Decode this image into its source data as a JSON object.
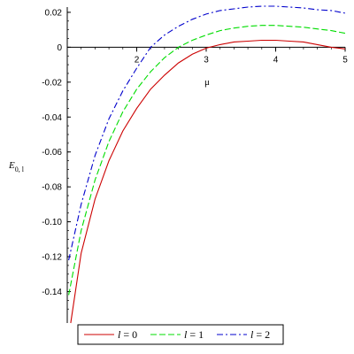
{
  "chart_data": {
    "type": "line",
    "xlabel": "μ",
    "ylabel": "E",
    "ylabel_sub": "0, l",
    "xlim": [
      1.0,
      5.0
    ],
    "ylim": [
      -0.158,
      0.023
    ],
    "x_ticks": [
      2,
      3,
      4,
      5
    ],
    "y_ticks": [
      0.02,
      0,
      -0.02,
      -0.04,
      -0.06,
      -0.08,
      -0.1,
      -0.12,
      -0.14
    ],
    "y_tick_labels": [
      "0.02",
      "0",
      "-0.02",
      "-0.04",
      "-0.06",
      "-0.08",
      "-0.10",
      "-0.12",
      "-0.14"
    ],
    "legend_position": "bottom",
    "series": [
      {
        "name": "l = 0",
        "legend_var": "l",
        "legend_value": "0",
        "color": "#cc0000",
        "dash": "solid",
        "points": [
          [
            1.05,
            -0.158
          ],
          [
            1.2,
            -0.118
          ],
          [
            1.4,
            -0.087
          ],
          [
            1.6,
            -0.065
          ],
          [
            1.8,
            -0.048
          ],
          [
            2.0,
            -0.035
          ],
          [
            2.2,
            -0.024
          ],
          [
            2.4,
            -0.016
          ],
          [
            2.6,
            -0.009
          ],
          [
            2.8,
            -0.004
          ],
          [
            3.0,
            -0.0005
          ],
          [
            3.2,
            0.0015
          ],
          [
            3.4,
            0.003
          ],
          [
            3.6,
            0.0035
          ],
          [
            3.8,
            0.004
          ],
          [
            4.0,
            0.004
          ],
          [
            4.2,
            0.0035
          ],
          [
            4.4,
            0.003
          ],
          [
            4.6,
            0.0015
          ],
          [
            4.8,
            0.0
          ],
          [
            5.0,
            -0.001
          ]
        ]
      },
      {
        "name": "l = 1",
        "legend_var": "l",
        "legend_value": "1",
        "color": "#00dd00",
        "dash": "dashed",
        "points": [
          [
            1.02,
            -0.142
          ],
          [
            1.2,
            -0.105
          ],
          [
            1.4,
            -0.076
          ],
          [
            1.6,
            -0.054
          ],
          [
            1.8,
            -0.037
          ],
          [
            2.0,
            -0.024
          ],
          [
            2.2,
            -0.014
          ],
          [
            2.4,
            -0.006
          ],
          [
            2.6,
            0.0
          ],
          [
            2.8,
            0.004
          ],
          [
            3.0,
            0.007
          ],
          [
            3.2,
            0.0095
          ],
          [
            3.4,
            0.011
          ],
          [
            3.6,
            0.012
          ],
          [
            3.8,
            0.0125
          ],
          [
            4.0,
            0.0125
          ],
          [
            4.2,
            0.012
          ],
          [
            4.4,
            0.0115
          ],
          [
            4.6,
            0.0105
          ],
          [
            4.8,
            0.0095
          ],
          [
            5.0,
            0.008
          ]
        ]
      },
      {
        "name": "l = 2",
        "legend_var": "l",
        "legend_value": "2",
        "color": "#0000cc",
        "dash": "dashdot",
        "points": [
          [
            1.02,
            -0.122
          ],
          [
            1.2,
            -0.09
          ],
          [
            1.4,
            -0.062
          ],
          [
            1.6,
            -0.041
          ],
          [
            1.8,
            -0.025
          ],
          [
            2.0,
            -0.012
          ],
          [
            2.1,
            -0.006
          ],
          [
            2.2,
            0.0
          ],
          [
            2.4,
            0.007
          ],
          [
            2.6,
            0.012
          ],
          [
            2.8,
            0.016
          ],
          [
            3.0,
            0.019
          ],
          [
            3.2,
            0.021
          ],
          [
            3.4,
            0.022
          ],
          [
            3.6,
            0.023
          ],
          [
            3.8,
            0.0235
          ],
          [
            4.0,
            0.0235
          ],
          [
            4.2,
            0.023
          ],
          [
            4.4,
            0.0225
          ],
          [
            4.6,
            0.0215
          ],
          [
            4.8,
            0.021
          ],
          [
            5.0,
            0.0195
          ]
        ]
      }
    ]
  }
}
